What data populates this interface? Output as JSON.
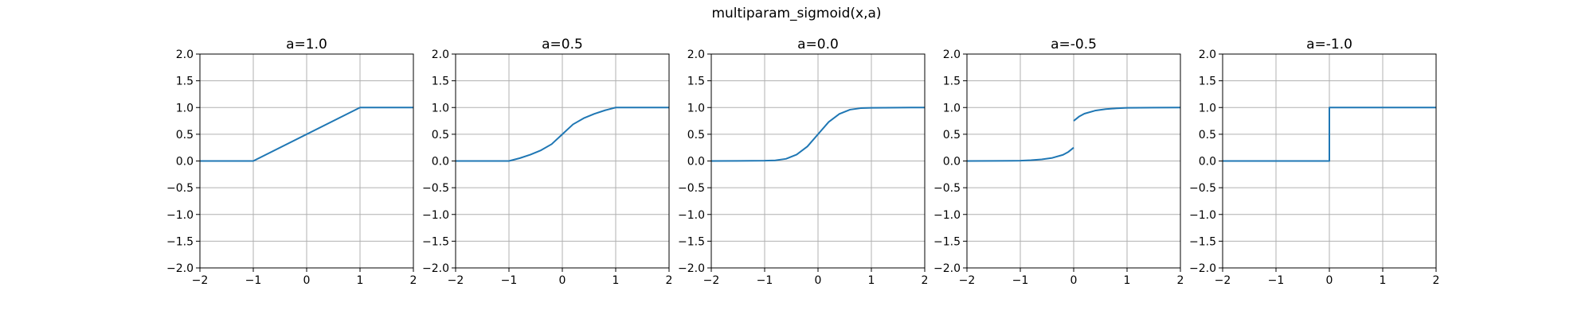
{
  "chart_data": {
    "type": "line",
    "title": "multiparam_sigmoid(x,a)",
    "color": "#1f77b4",
    "xlim": [
      -2,
      2
    ],
    "ylim": [
      -2,
      2
    ],
    "xticks": [
      -2,
      -1,
      0,
      1,
      2
    ],
    "yticks": [
      -2.0,
      -1.5,
      -1.0,
      -0.5,
      0.0,
      0.5,
      1.0,
      1.5,
      2.0
    ],
    "xtick_labels": [
      "−2",
      "−1",
      "0",
      "1",
      "2"
    ],
    "ytick_labels": [
      "−2.0",
      "−1.5",
      "−1.0",
      "−0.5",
      "0.0",
      "0.5",
      "1.0",
      "1.5",
      "2.0"
    ],
    "grid": true,
    "panels": [
      {
        "title": "a=1.0",
        "series": [
          {
            "x": [
              -2,
              -1,
              1,
              2
            ],
            "y": [
              0,
              0,
              1,
              1
            ]
          }
        ]
      },
      {
        "title": "a=0.5",
        "series": [
          {
            "x": [
              -2,
              -1,
              -0.8,
              -0.6,
              -0.4,
              -0.2,
              0,
              0.2,
              0.4,
              0.6,
              0.8,
              1,
              2
            ],
            "y": [
              0,
              0,
              0.052,
              0.118,
              0.2,
              0.315,
              0.5,
              0.685,
              0.8,
              0.882,
              0.948,
              1,
              1
            ]
          }
        ]
      },
      {
        "title": "a=0.0",
        "series": [
          {
            "x": [
              -2,
              -1.5,
              -1,
              -0.8,
              -0.6,
              -0.4,
              -0.2,
              0,
              0.2,
              0.4,
              0.6,
              0.8,
              1,
              1.5,
              2
            ],
            "y": [
              0,
              0.001,
              0.005,
              0.012,
              0.04,
              0.12,
              0.27,
              0.5,
              0.73,
              0.88,
              0.96,
              0.988,
              0.995,
              0.999,
              1
            ]
          }
        ]
      },
      {
        "title": "a=-0.5",
        "series": [
          {
            "x": [
              -2,
              -1.5,
              -1,
              -0.8,
              -0.6,
              -0.4,
              -0.2,
              -0.1,
              0
            ],
            "y": [
              0,
              0.001,
              0.006,
              0.015,
              0.03,
              0.058,
              0.115,
              0.17,
              0.25
            ]
          },
          {
            "x": [
              0,
              0.1,
              0.2,
              0.4,
              0.6,
              0.8,
              1,
              1.5,
              2
            ],
            "y": [
              0.75,
              0.83,
              0.885,
              0.942,
              0.97,
              0.985,
              0.994,
              0.999,
              1
            ]
          }
        ]
      },
      {
        "title": "a=-1.0",
        "series": [
          {
            "x": [
              -2,
              0,
              0,
              2
            ],
            "y": [
              0,
              0,
              1,
              1
            ]
          }
        ]
      }
    ]
  }
}
